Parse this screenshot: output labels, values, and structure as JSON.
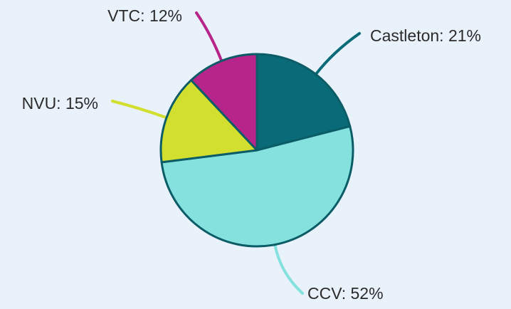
{
  "chart_data": {
    "type": "pie",
    "values": [
      21,
      52,
      15,
      12
    ],
    "value_labels": [
      "Castleton: 21%",
      "CCV: 52%",
      "NVU: 15%",
      "VTC: 12%"
    ],
    "colors": [
      "#096b77",
      "#84e1dd",
      "#d3df2f",
      "#b8258a"
    ]
  }
}
